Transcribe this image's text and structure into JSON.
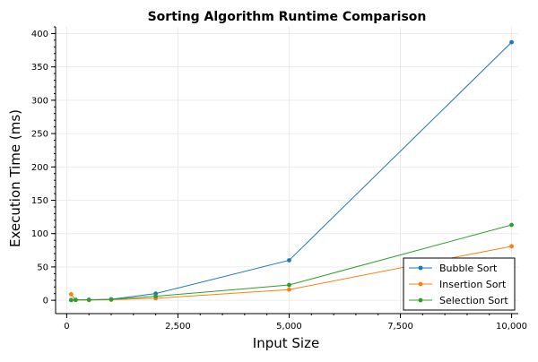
{
  "chart_data": {
    "type": "line",
    "title": "Sorting Algorithm Runtime Comparison",
    "xlabel": "Input Size",
    "ylabel": "Execution Time (ms)",
    "xlim": [
      -250,
      10150
    ],
    "ylim": [
      -20,
      410
    ],
    "xticks": [
      0,
      2500,
      5000,
      7500,
      10000
    ],
    "xtick_labels": [
      "0",
      "2,500",
      "5,000",
      "7,500",
      "10,000"
    ],
    "yticks": [
      0,
      50,
      100,
      150,
      200,
      250,
      300,
      350,
      400
    ],
    "ytick_labels": [
      "0",
      "50",
      "100",
      "150",
      "200",
      "250",
      "300",
      "350",
      "400"
    ],
    "grid": true,
    "legend_position": "bottom-right",
    "x": [
      100,
      200,
      500,
      1000,
      2000,
      5000,
      10000
    ],
    "series": [
      {
        "name": "Bubble Sort",
        "color": "#1f77b4",
        "values": [
          0.3,
          0.6,
          0.8,
          1.5,
          10,
          60,
          387
        ]
      },
      {
        "name": "Insertion Sort",
        "color": "#ff7f0e",
        "values": [
          9,
          0.5,
          0.4,
          0.8,
          3,
          16,
          81
        ]
      },
      {
        "name": "Selection Sort",
        "color": "#2ca02c",
        "values": [
          0.5,
          0.5,
          0.6,
          1.2,
          6,
          23,
          113
        ]
      }
    ]
  }
}
